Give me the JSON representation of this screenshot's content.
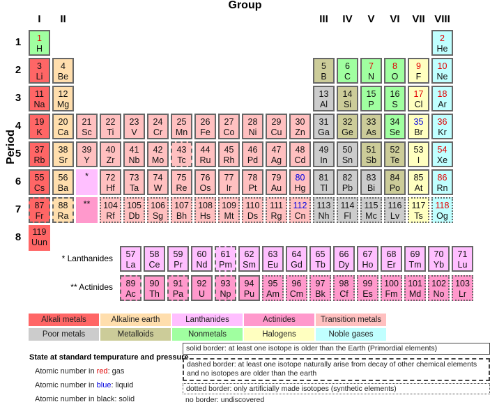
{
  "title": "Group",
  "period_label": "Period",
  "group_headers": [
    {
      "label": "I",
      "col": 1
    },
    {
      "label": "II",
      "col": 2
    },
    {
      "label": "III",
      "col": 13
    },
    {
      "label": "IV",
      "col": 14
    },
    {
      "label": "V",
      "col": 15
    },
    {
      "label": "VI",
      "col": 16
    },
    {
      "label": "VII",
      "col": 17
    },
    {
      "label": "VIII",
      "col": 18
    }
  ],
  "periods": [
    "1",
    "2",
    "3",
    "4",
    "5",
    "6",
    "7",
    "8"
  ],
  "colors": {
    "alkali": "#ff6666",
    "alkaline": "#ffdead",
    "lanthanide": "#ffbfff",
    "actinide": "#ff99cc",
    "transition": "#ffc0c0",
    "poor": "#cccccc",
    "metalloid": "#cccc99",
    "nonmetal": "#a0ffa0",
    "halogen": "#ffffc0",
    "noble": "#c0ffff"
  },
  "state_colors": {
    "gas": "#e00000",
    "liquid": "#0000e0",
    "solid": "#111111"
  },
  "elements": [
    {
      "n": "1",
      "s": "H",
      "p": 1,
      "g": 1,
      "c": "nonmetal",
      "st": "gas",
      "b": "solid"
    },
    {
      "n": "2",
      "s": "He",
      "p": 1,
      "g": 18,
      "c": "noble",
      "st": "gas",
      "b": "solid"
    },
    {
      "n": "3",
      "s": "Li",
      "p": 2,
      "g": 1,
      "c": "alkali",
      "st": "solid",
      "b": "solid"
    },
    {
      "n": "4",
      "s": "Be",
      "p": 2,
      "g": 2,
      "c": "alkaline",
      "st": "solid",
      "b": "solid"
    },
    {
      "n": "5",
      "s": "B",
      "p": 2,
      "g": 13,
      "c": "metalloid",
      "st": "solid",
      "b": "solid"
    },
    {
      "n": "6",
      "s": "C",
      "p": 2,
      "g": 14,
      "c": "nonmetal",
      "st": "solid",
      "b": "solid"
    },
    {
      "n": "7",
      "s": "N",
      "p": 2,
      "g": 15,
      "c": "nonmetal",
      "st": "gas",
      "b": "solid"
    },
    {
      "n": "8",
      "s": "O",
      "p": 2,
      "g": 16,
      "c": "nonmetal",
      "st": "gas",
      "b": "solid"
    },
    {
      "n": "9",
      "s": "F",
      "p": 2,
      "g": 17,
      "c": "halogen",
      "st": "gas",
      "b": "solid"
    },
    {
      "n": "10",
      "s": "Ne",
      "p": 2,
      "g": 18,
      "c": "noble",
      "st": "gas",
      "b": "solid"
    },
    {
      "n": "11",
      "s": "Na",
      "p": 3,
      "g": 1,
      "c": "alkali",
      "st": "solid",
      "b": "solid"
    },
    {
      "n": "12",
      "s": "Mg",
      "p": 3,
      "g": 2,
      "c": "alkaline",
      "st": "solid",
      "b": "solid"
    },
    {
      "n": "13",
      "s": "Al",
      "p": 3,
      "g": 13,
      "c": "poor",
      "st": "solid",
      "b": "solid"
    },
    {
      "n": "14",
      "s": "Si",
      "p": 3,
      "g": 14,
      "c": "metalloid",
      "st": "solid",
      "b": "solid"
    },
    {
      "n": "15",
      "s": "P",
      "p": 3,
      "g": 15,
      "c": "nonmetal",
      "st": "solid",
      "b": "solid"
    },
    {
      "n": "16",
      "s": "S",
      "p": 3,
      "g": 16,
      "c": "nonmetal",
      "st": "solid",
      "b": "solid"
    },
    {
      "n": "17",
      "s": "Cl",
      "p": 3,
      "g": 17,
      "c": "halogen",
      "st": "gas",
      "b": "solid"
    },
    {
      "n": "18",
      "s": "Ar",
      "p": 3,
      "g": 18,
      "c": "noble",
      "st": "gas",
      "b": "solid"
    },
    {
      "n": "19",
      "s": "K",
      "p": 4,
      "g": 1,
      "c": "alkali",
      "st": "solid",
      "b": "solid"
    },
    {
      "n": "20",
      "s": "Ca",
      "p": 4,
      "g": 2,
      "c": "alkaline",
      "st": "solid",
      "b": "solid"
    },
    {
      "n": "21",
      "s": "Sc",
      "p": 4,
      "g": 3,
      "c": "transition",
      "st": "solid",
      "b": "solid"
    },
    {
      "n": "22",
      "s": "Ti",
      "p": 4,
      "g": 4,
      "c": "transition",
      "st": "solid",
      "b": "solid"
    },
    {
      "n": "23",
      "s": "V",
      "p": 4,
      "g": 5,
      "c": "transition",
      "st": "solid",
      "b": "solid"
    },
    {
      "n": "24",
      "s": "Cr",
      "p": 4,
      "g": 6,
      "c": "transition",
      "st": "solid",
      "b": "solid"
    },
    {
      "n": "25",
      "s": "Mn",
      "p": 4,
      "g": 7,
      "c": "transition",
      "st": "solid",
      "b": "solid"
    },
    {
      "n": "26",
      "s": "Fe",
      "p": 4,
      "g": 8,
      "c": "transition",
      "st": "solid",
      "b": "solid"
    },
    {
      "n": "27",
      "s": "Co",
      "p": 4,
      "g": 9,
      "c": "transition",
      "st": "solid",
      "b": "solid"
    },
    {
      "n": "28",
      "s": "Ni",
      "p": 4,
      "g": 10,
      "c": "transition",
      "st": "solid",
      "b": "solid"
    },
    {
      "n": "29",
      "s": "Cu",
      "p": 4,
      "g": 11,
      "c": "transition",
      "st": "solid",
      "b": "solid"
    },
    {
      "n": "30",
      "s": "Zn",
      "p": 4,
      "g": 12,
      "c": "transition",
      "st": "solid",
      "b": "solid"
    },
    {
      "n": "31",
      "s": "Ga",
      "p": 4,
      "g": 13,
      "c": "poor",
      "st": "solid",
      "b": "solid"
    },
    {
      "n": "32",
      "s": "Ge",
      "p": 4,
      "g": 14,
      "c": "metalloid",
      "st": "solid",
      "b": "solid"
    },
    {
      "n": "33",
      "s": "As",
      "p": 4,
      "g": 15,
      "c": "metalloid",
      "st": "solid",
      "b": "solid"
    },
    {
      "n": "34",
      "s": "Se",
      "p": 4,
      "g": 16,
      "c": "nonmetal",
      "st": "solid",
      "b": "solid"
    },
    {
      "n": "35",
      "s": "Br",
      "p": 4,
      "g": 17,
      "c": "halogen",
      "st": "liquid",
      "b": "solid"
    },
    {
      "n": "36",
      "s": "Kr",
      "p": 4,
      "g": 18,
      "c": "noble",
      "st": "gas",
      "b": "solid"
    },
    {
      "n": "37",
      "s": "Rb",
      "p": 5,
      "g": 1,
      "c": "alkali",
      "st": "solid",
      "b": "solid"
    },
    {
      "n": "38",
      "s": "Sr",
      "p": 5,
      "g": 2,
      "c": "alkaline",
      "st": "solid",
      "b": "solid"
    },
    {
      "n": "39",
      "s": "Y",
      "p": 5,
      "g": 3,
      "c": "transition",
      "st": "solid",
      "b": "solid"
    },
    {
      "n": "40",
      "s": "Zr",
      "p": 5,
      "g": 4,
      "c": "transition",
      "st": "solid",
      "b": "solid"
    },
    {
      "n": "41",
      "s": "Nb",
      "p": 5,
      "g": 5,
      "c": "transition",
      "st": "solid",
      "b": "solid"
    },
    {
      "n": "42",
      "s": "Mo",
      "p": 5,
      "g": 6,
      "c": "transition",
      "st": "solid",
      "b": "solid"
    },
    {
      "n": "43",
      "s": "Tc",
      "p": 5,
      "g": 7,
      "c": "transition",
      "st": "solid",
      "b": "dashed"
    },
    {
      "n": "44",
      "s": "Ru",
      "p": 5,
      "g": 8,
      "c": "transition",
      "st": "solid",
      "b": "solid"
    },
    {
      "n": "45",
      "s": "Rh",
      "p": 5,
      "g": 9,
      "c": "transition",
      "st": "solid",
      "b": "solid"
    },
    {
      "n": "46",
      "s": "Pd",
      "p": 5,
      "g": 10,
      "c": "transition",
      "st": "solid",
      "b": "solid"
    },
    {
      "n": "47",
      "s": "Ag",
      "p": 5,
      "g": 11,
      "c": "transition",
      "st": "solid",
      "b": "solid"
    },
    {
      "n": "48",
      "s": "Cd",
      "p": 5,
      "g": 12,
      "c": "transition",
      "st": "solid",
      "b": "solid"
    },
    {
      "n": "49",
      "s": "In",
      "p": 5,
      "g": 13,
      "c": "poor",
      "st": "solid",
      "b": "solid"
    },
    {
      "n": "50",
      "s": "Sn",
      "p": 5,
      "g": 14,
      "c": "poor",
      "st": "solid",
      "b": "solid"
    },
    {
      "n": "51",
      "s": "Sb",
      "p": 5,
      "g": 15,
      "c": "metalloid",
      "st": "solid",
      "b": "solid"
    },
    {
      "n": "52",
      "s": "Te",
      "p": 5,
      "g": 16,
      "c": "metalloid",
      "st": "solid",
      "b": "solid"
    },
    {
      "n": "53",
      "s": "I",
      "p": 5,
      "g": 17,
      "c": "halogen",
      "st": "solid",
      "b": "solid"
    },
    {
      "n": "54",
      "s": "Xe",
      "p": 5,
      "g": 18,
      "c": "noble",
      "st": "gas",
      "b": "solid"
    },
    {
      "n": "55",
      "s": "Cs",
      "p": 6,
      "g": 1,
      "c": "alkali",
      "st": "solid",
      "b": "solid"
    },
    {
      "n": "56",
      "s": "Ba",
      "p": 6,
      "g": 2,
      "c": "alkaline",
      "st": "solid",
      "b": "solid"
    },
    {
      "n": "*",
      "s": "",
      "p": 6,
      "g": 3,
      "c": "lanthanide",
      "st": "solid",
      "b": "none"
    },
    {
      "n": "72",
      "s": "Hf",
      "p": 6,
      "g": 4,
      "c": "transition",
      "st": "solid",
      "b": "solid"
    },
    {
      "n": "73",
      "s": "Ta",
      "p": 6,
      "g": 5,
      "c": "transition",
      "st": "solid",
      "b": "solid"
    },
    {
      "n": "74",
      "s": "W",
      "p": 6,
      "g": 6,
      "c": "transition",
      "st": "solid",
      "b": "solid"
    },
    {
      "n": "75",
      "s": "Re",
      "p": 6,
      "g": 7,
      "c": "transition",
      "st": "solid",
      "b": "solid"
    },
    {
      "n": "76",
      "s": "Os",
      "p": 6,
      "g": 8,
      "c": "transition",
      "st": "solid",
      "b": "solid"
    },
    {
      "n": "77",
      "s": "Ir",
      "p": 6,
      "g": 9,
      "c": "transition",
      "st": "solid",
      "b": "solid"
    },
    {
      "n": "78",
      "s": "Pt",
      "p": 6,
      "g": 10,
      "c": "transition",
      "st": "solid",
      "b": "solid"
    },
    {
      "n": "79",
      "s": "Au",
      "p": 6,
      "g": 11,
      "c": "transition",
      "st": "solid",
      "b": "solid"
    },
    {
      "n": "80",
      "s": "Hg",
      "p": 6,
      "g": 12,
      "c": "transition",
      "st": "liquid",
      "b": "solid"
    },
    {
      "n": "81",
      "s": "Tl",
      "p": 6,
      "g": 13,
      "c": "poor",
      "st": "solid",
      "b": "solid"
    },
    {
      "n": "82",
      "s": "Pb",
      "p": 6,
      "g": 14,
      "c": "poor",
      "st": "solid",
      "b": "solid"
    },
    {
      "n": "83",
      "s": "Bi",
      "p": 6,
      "g": 15,
      "c": "poor",
      "st": "solid",
      "b": "solid"
    },
    {
      "n": "84",
      "s": "Po",
      "p": 6,
      "g": 16,
      "c": "metalloid",
      "st": "solid",
      "b": "solid"
    },
    {
      "n": "85",
      "s": "At",
      "p": 6,
      "g": 17,
      "c": "halogen",
      "st": "solid",
      "b": "solid"
    },
    {
      "n": "86",
      "s": "Rn",
      "p": 6,
      "g": 18,
      "c": "noble",
      "st": "gas",
      "b": "solid"
    },
    {
      "n": "87",
      "s": "Fr",
      "p": 7,
      "g": 1,
      "c": "alkali",
      "st": "solid",
      "b": "dashed"
    },
    {
      "n": "88",
      "s": "Ra",
      "p": 7,
      "g": 2,
      "c": "alkaline",
      "st": "solid",
      "b": "dashed"
    },
    {
      "n": "**",
      "s": "",
      "p": 7,
      "g": 3,
      "c": "actinide",
      "st": "solid",
      "b": "none"
    },
    {
      "n": "104",
      "s": "Rf",
      "p": 7,
      "g": 4,
      "c": "transition",
      "st": "solid",
      "b": "dotted"
    },
    {
      "n": "105",
      "s": "Db",
      "p": 7,
      "g": 5,
      "c": "transition",
      "st": "solid",
      "b": "dotted"
    },
    {
      "n": "106",
      "s": "Sg",
      "p": 7,
      "g": 6,
      "c": "transition",
      "st": "solid",
      "b": "dotted"
    },
    {
      "n": "107",
      "s": "Bh",
      "p": 7,
      "g": 7,
      "c": "transition",
      "st": "solid",
      "b": "dotted"
    },
    {
      "n": "108",
      "s": "Hs",
      "p": 7,
      "g": 8,
      "c": "transition",
      "st": "solid",
      "b": "dotted"
    },
    {
      "n": "109",
      "s": "Mt",
      "p": 7,
      "g": 9,
      "c": "transition",
      "st": "solid",
      "b": "dotted"
    },
    {
      "n": "110",
      "s": "Ds",
      "p": 7,
      "g": 10,
      "c": "transition",
      "st": "solid",
      "b": "dotted"
    },
    {
      "n": "111",
      "s": "Rg",
      "p": 7,
      "g": 11,
      "c": "transition",
      "st": "solid",
      "b": "dotted"
    },
    {
      "n": "112",
      "s": "Cn",
      "p": 7,
      "g": 12,
      "c": "transition",
      "st": "liquid",
      "b": "dotted"
    },
    {
      "n": "113",
      "s": "Nh",
      "p": 7,
      "g": 13,
      "c": "poor",
      "st": "solid",
      "b": "dotted"
    },
    {
      "n": "114",
      "s": "Fl",
      "p": 7,
      "g": 14,
      "c": "poor",
      "st": "solid",
      "b": "dotted"
    },
    {
      "n": "115",
      "s": "Mc",
      "p": 7,
      "g": 15,
      "c": "poor",
      "st": "solid",
      "b": "dotted"
    },
    {
      "n": "116",
      "s": "Lv",
      "p": 7,
      "g": 16,
      "c": "poor",
      "st": "solid",
      "b": "dotted"
    },
    {
      "n": "117",
      "s": "Ts",
      "p": 7,
      "g": 17,
      "c": "halogen",
      "st": "solid",
      "b": "dotted"
    },
    {
      "n": "118",
      "s": "Og",
      "p": 7,
      "g": 18,
      "c": "noble",
      "st": "gas",
      "b": "dotted"
    },
    {
      "n": "119",
      "s": "Uun",
      "p": 8,
      "g": 1,
      "c": "alkali",
      "st": "solid",
      "b": "none"
    }
  ],
  "lanthanides": {
    "label": "* Lanthanides",
    "items": [
      {
        "n": "57",
        "s": "La",
        "b": "solid"
      },
      {
        "n": "58",
        "s": "Ce",
        "b": "solid"
      },
      {
        "n": "59",
        "s": "Pr",
        "b": "solid"
      },
      {
        "n": "60",
        "s": "Nd",
        "b": "solid"
      },
      {
        "n": "61",
        "s": "Pm",
        "b": "dashed"
      },
      {
        "n": "62",
        "s": "Sm",
        "b": "solid"
      },
      {
        "n": "63",
        "s": "Eu",
        "b": "solid"
      },
      {
        "n": "64",
        "s": "Gd",
        "b": "solid"
      },
      {
        "n": "65",
        "s": "Tb",
        "b": "solid"
      },
      {
        "n": "66",
        "s": "Dy",
        "b": "solid"
      },
      {
        "n": "67",
        "s": "Ho",
        "b": "solid"
      },
      {
        "n": "68",
        "s": "Er",
        "b": "solid"
      },
      {
        "n": "69",
        "s": "Tm",
        "b": "solid"
      },
      {
        "n": "70",
        "s": "Yb",
        "b": "solid"
      },
      {
        "n": "71",
        "s": "Lu",
        "b": "solid"
      }
    ]
  },
  "actinides": {
    "label": "** Actinides",
    "items": [
      {
        "n": "89",
        "s": "Ac",
        "b": "dashed"
      },
      {
        "n": "90",
        "s": "Th",
        "b": "solid"
      },
      {
        "n": "91",
        "s": "Pa",
        "b": "dashed"
      },
      {
        "n": "92",
        "s": "U",
        "b": "solid"
      },
      {
        "n": "93",
        "s": "Np",
        "b": "dashed"
      },
      {
        "n": "94",
        "s": "Pu",
        "b": "solid"
      },
      {
        "n": "95",
        "s": "Am",
        "b": "dotted"
      },
      {
        "n": "96",
        "s": "Cm",
        "b": "dotted"
      },
      {
        "n": "97",
        "s": "Bk",
        "b": "dotted"
      },
      {
        "n": "98",
        "s": "Cf",
        "b": "dotted"
      },
      {
        "n": "99",
        "s": "Es",
        "b": "dotted"
      },
      {
        "n": "100",
        "s": "Fm",
        "b": "dotted"
      },
      {
        "n": "101",
        "s": "Md",
        "b": "dotted"
      },
      {
        "n": "102",
        "s": "No",
        "b": "dotted"
      },
      {
        "n": "103",
        "s": "Lr",
        "b": "dotted"
      }
    ]
  },
  "legend": [
    {
      "label": "Alkali metals",
      "c": "alkali"
    },
    {
      "label": "Alkaline earth metals",
      "c": "alkaline"
    },
    {
      "label": "Lanthanides",
      "c": "lanthanide"
    },
    {
      "label": "Actinides",
      "c": "actinide"
    },
    {
      "label": "Transition metals",
      "c": "transition"
    },
    {
      "label": "Poor metals",
      "c": "poor"
    },
    {
      "label": "Metalloids",
      "c": "metalloid"
    },
    {
      "label": "Nonmetals",
      "c": "nonmetal"
    },
    {
      "label": "Halogens",
      "c": "halogen"
    },
    {
      "label": "Noble gases",
      "c": "noble"
    }
  ],
  "state_legend": {
    "title": "State at standard tempurature and pressure",
    "items": [
      {
        "prefix": "Atomic number in ",
        "word": "red",
        "suffix": ": gas",
        "st": "gas"
      },
      {
        "prefix": "Atomic number in ",
        "word": "blue",
        "suffix": ": liquid",
        "st": "liquid"
      },
      {
        "prefix": "Atomic number in black: solid",
        "word": "",
        "suffix": "",
        "st": "solid"
      }
    ]
  },
  "border_legend": {
    "solid": "solid border: at least one isotope is older than the Earth (Primordial elements)",
    "dashed": "dashed border: at least one isotope naturally arise from decay of other chemical elements and no isotopes are older than the earth",
    "dotted": "dotted border: only artificially made isotopes (synthetic elements)",
    "none": "no border: undiscovered"
  }
}
